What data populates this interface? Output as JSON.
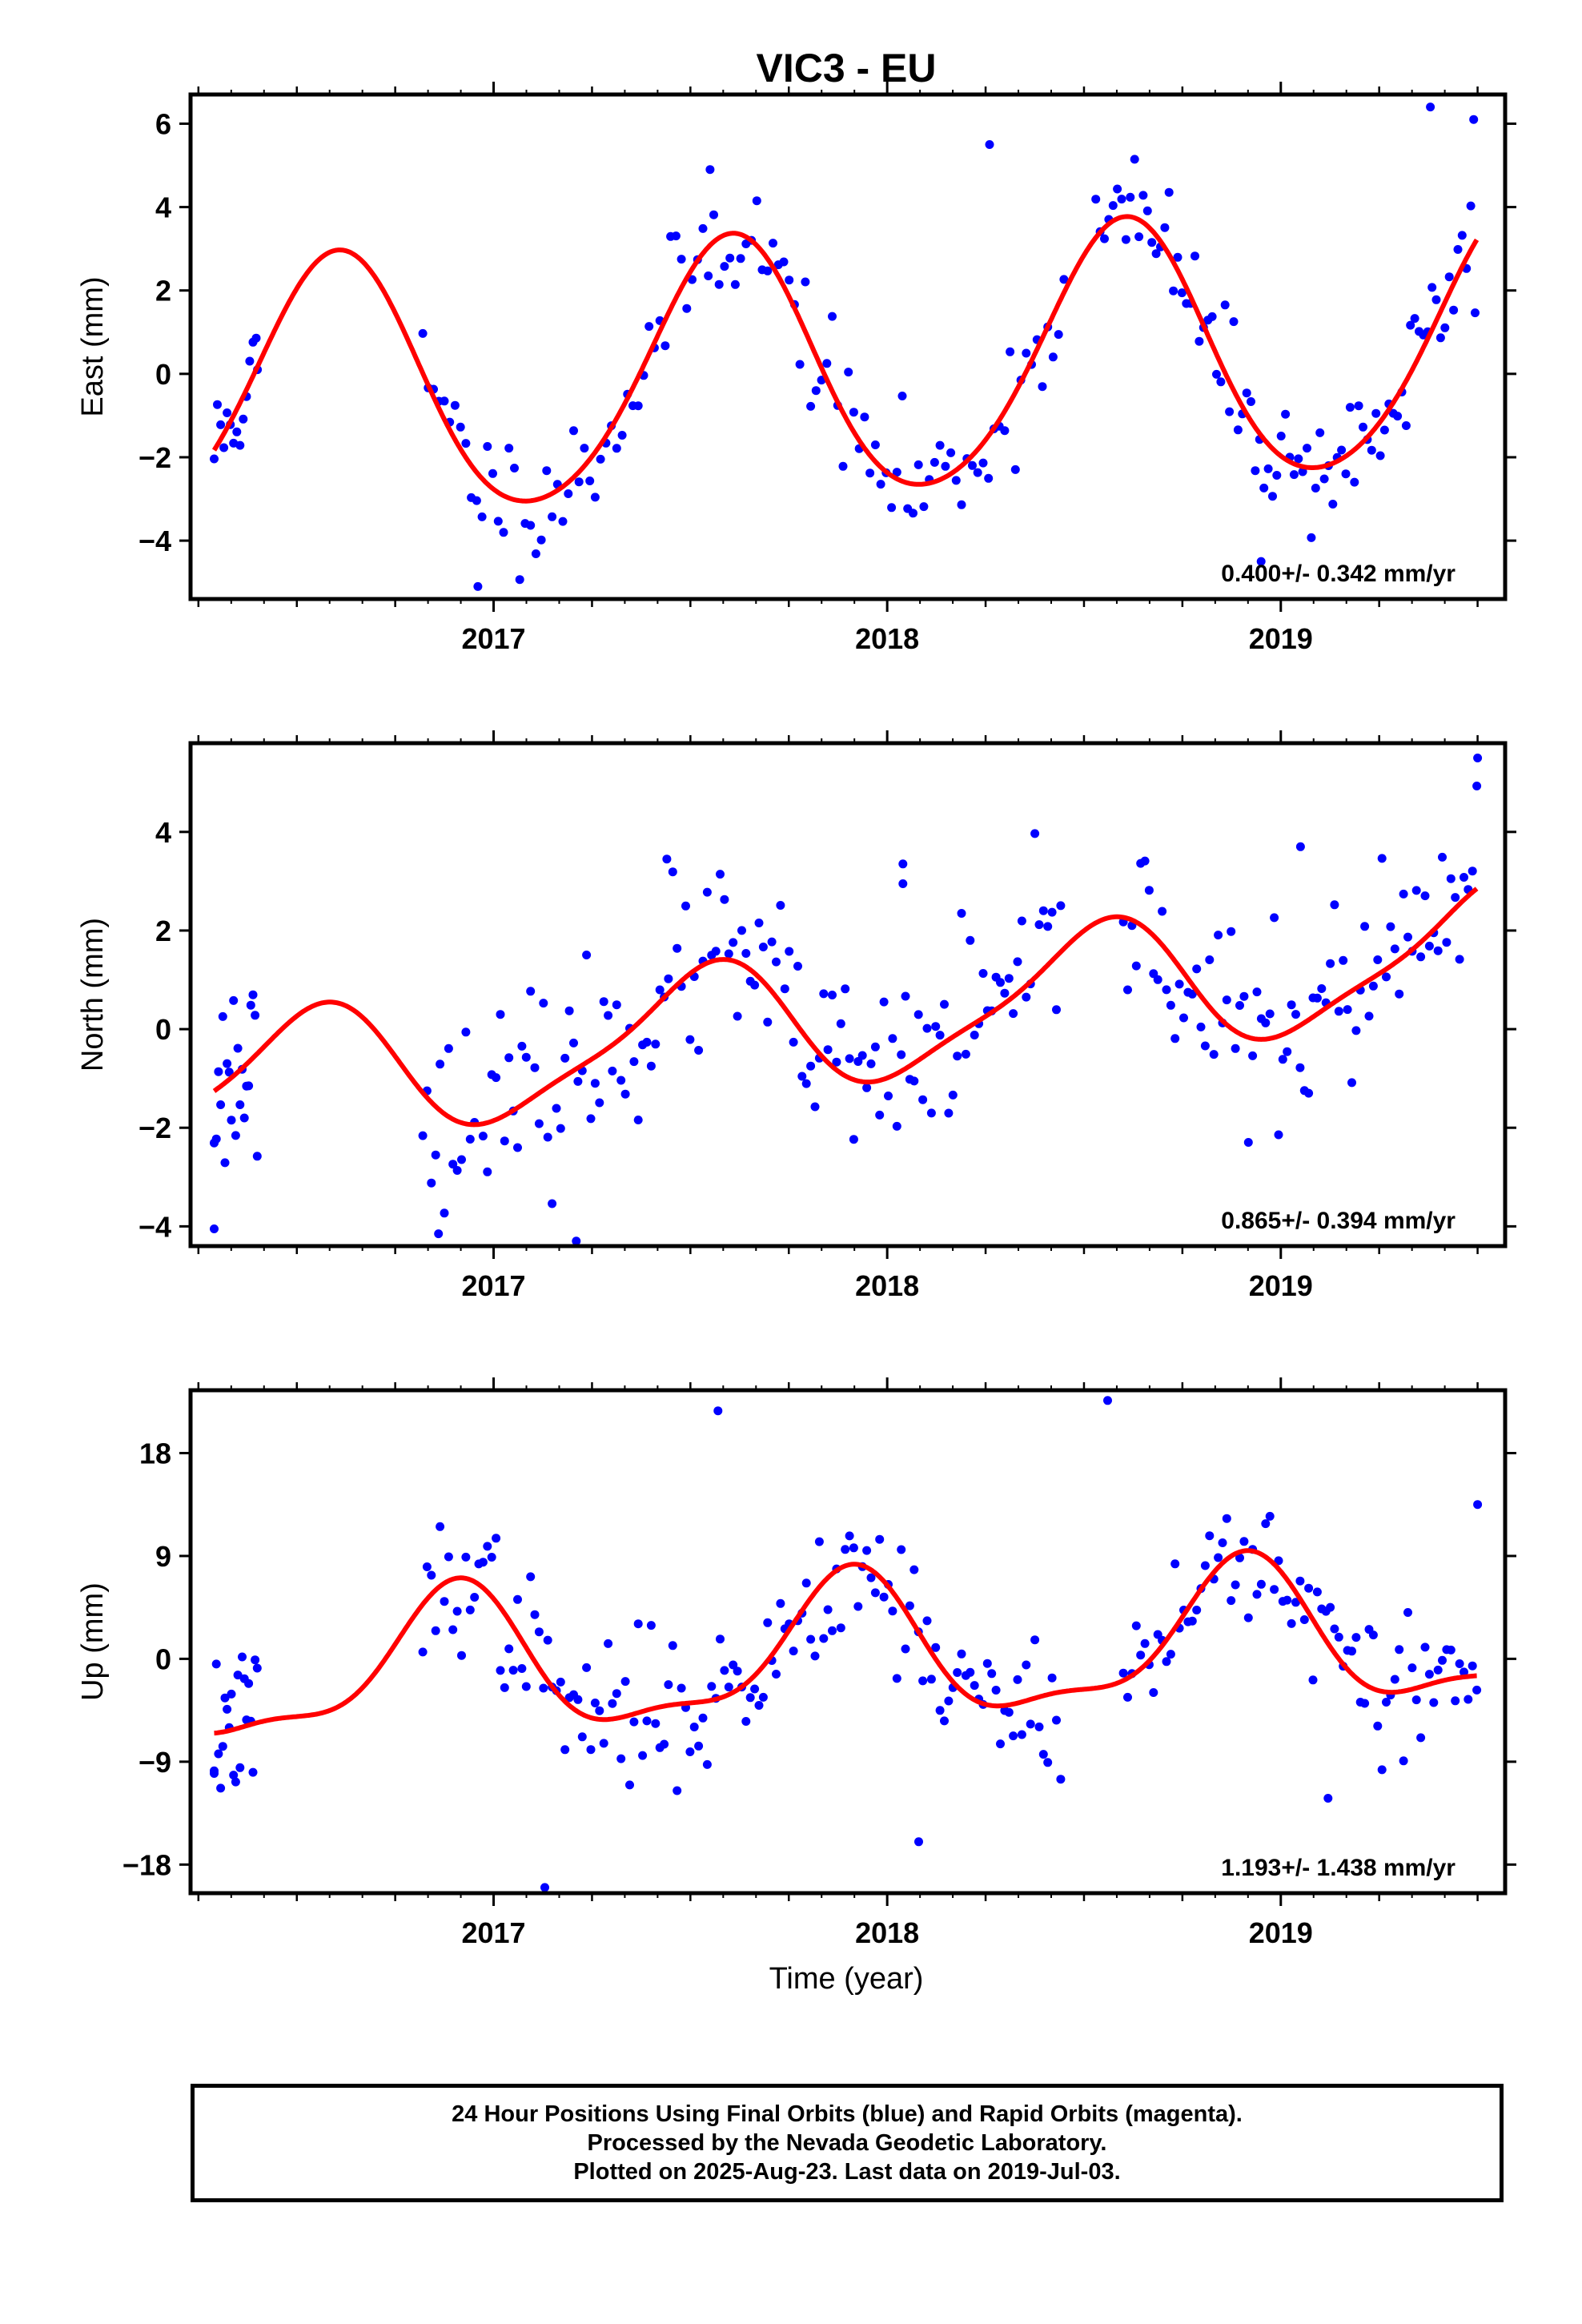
{
  "title": "VIC3 - EU",
  "xlabel": "Time (year)",
  "footer_lines": [
    "24 Hour Positions Using Final Orbits (blue) and Rapid Orbits (magenta).",
    "Processed by the Nevada Geodetic Laboratory.",
    "Plotted on 2025-Aug-23. Last data on 2019-Jul-03."
  ],
  "colors": {
    "points": "#0000ff",
    "model": "#ff0000",
    "frame": "#000000"
  },
  "chart_data": [
    {
      "type": "scatter",
      "name": "east",
      "ylabel": "East (mm)",
      "xlim": [
        2016.23,
        2019.57
      ],
      "ylim": [
        -5.4,
        6.7
      ],
      "yticks": [
        -4,
        -2,
        0,
        2,
        4,
        6
      ],
      "xticks": [
        2017,
        2018,
        2019
      ],
      "rate": "0.400+/- 0.342 mm/yr",
      "legend": "none",
      "grid": false,
      "model_params": {
        "mean": 0.1,
        "slope": 0.4,
        "t0": 2017.9,
        "A1": 3.1,
        "p1": 0.35,
        "A2": 0.3,
        "p2": 0.5
      },
      "point_segments": [
        [
          2016.29,
          2016.4,
          3
        ],
        [
          2016.82,
          2018.45,
          5
        ],
        [
          2018.53,
          2019.5,
          4
        ]
      ],
      "noise": 0.75,
      "seed": 11,
      "key_points": [
        [
          2016.4,
          0.1
        ],
        [
          2016.96,
          -5.1
        ],
        [
          2017.55,
          4.9
        ],
        [
          2018.26,
          5.5
        ],
        [
          2018.95,
          -4.5
        ],
        [
          2019.38,
          6.4
        ],
        [
          2019.49,
          6.1
        ]
      ]
    },
    {
      "type": "scatter",
      "name": "north",
      "ylabel": "North (mm)",
      "xlim": [
        2016.23,
        2019.57
      ],
      "ylim": [
        -4.4,
        5.8
      ],
      "yticks": [
        -4,
        -2,
        0,
        2,
        4
      ],
      "xticks": [
        2017,
        2018,
        2019
      ],
      "rate": "0.865+/- 0.394 mm/yr",
      "legend": "none",
      "grid": false,
      "model_params": {
        "mean": 0.2,
        "slope": 0.865,
        "t0": 2017.9,
        "A1": 1.3,
        "p1": 0.28,
        "A2": 0.3,
        "p2": 0.0
      },
      "point_segments": [
        [
          2016.29,
          2016.4,
          2
        ],
        [
          2016.82,
          2018.45,
          4
        ],
        [
          2018.6,
          2019.5,
          4
        ]
      ],
      "noise": 0.95,
      "seed": 23,
      "key_points": [
        [
          2016.29,
          -4.05
        ],
        [
          2016.86,
          -4.15
        ],
        [
          2017.21,
          -4.3
        ],
        [
          2017.44,
          3.45
        ],
        [
          2018.04,
          3.35
        ],
        [
          2018.04,
          2.95
        ],
        [
          2019.5,
          5.5
        ],
        [
          2019.05,
          3.7
        ]
      ]
    },
    {
      "type": "scatter",
      "name": "up",
      "ylabel": "Up (mm)",
      "xlim": [
        2016.23,
        2019.57
      ],
      "ylim": [
        -20.5,
        23.5
      ],
      "yticks": [
        -18,
        -9,
        0,
        9,
        18
      ],
      "xticks": [
        2017,
        2018,
        2019
      ],
      "rate": "1.193+/- 1.438 mm/yr",
      "legend": "none",
      "grid": false,
      "model_params": {
        "mean": 0.3,
        "slope": 1.193,
        "t0": 2017.9,
        "A1": 6.0,
        "p1": 0.65,
        "A2": 2.0,
        "p2": 0.8
      },
      "point_segments": [
        [
          2016.29,
          2016.4,
          2
        ],
        [
          2016.82,
          2018.45,
          4
        ],
        [
          2018.6,
          2019.5,
          4
        ]
      ],
      "noise": 3.2,
      "seed": 37,
      "key_points": [
        [
          2017.13,
          -20.0
        ],
        [
          2017.57,
          21.7
        ],
        [
          2018.56,
          22.6
        ],
        [
          2016.29,
          -9.8
        ],
        [
          2018.08,
          -16.0
        ],
        [
          2019.12,
          -12.2
        ],
        [
          2019.5,
          13.5
        ]
      ]
    }
  ]
}
